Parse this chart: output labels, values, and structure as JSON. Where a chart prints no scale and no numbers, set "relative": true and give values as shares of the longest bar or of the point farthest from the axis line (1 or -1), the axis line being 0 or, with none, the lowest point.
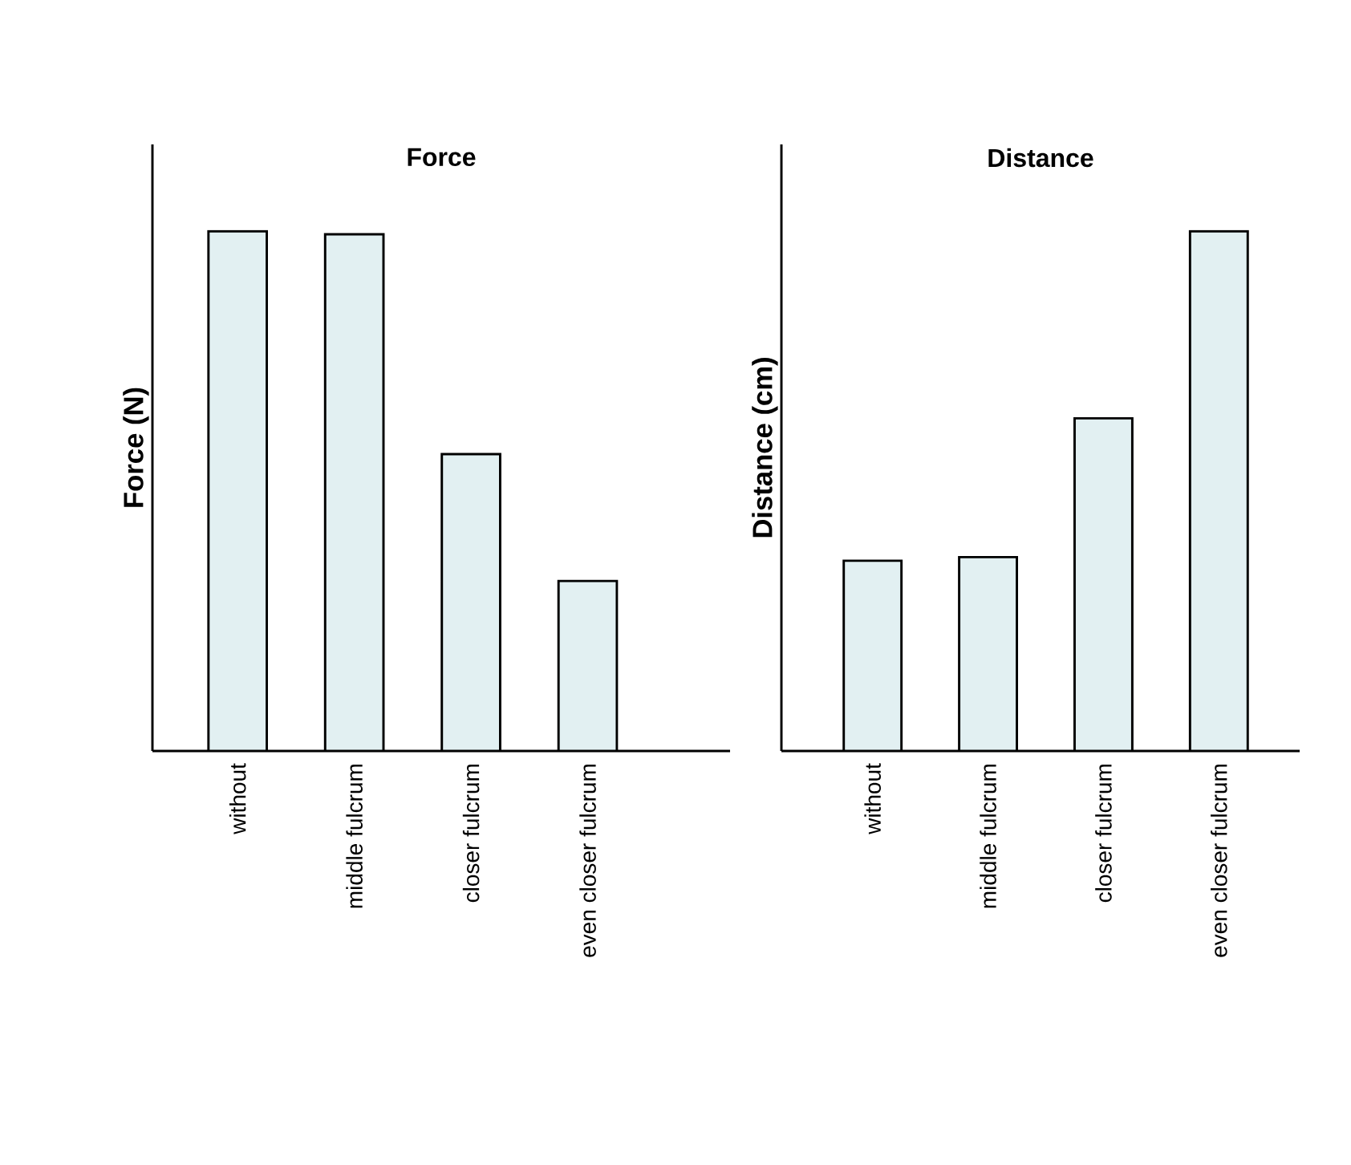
{
  "chart_data": [
    {
      "type": "bar",
      "title": "Force",
      "ylabel": "Force (N)",
      "categories": [
        "without",
        "middle fulcrum",
        "closer fulcrum",
        "even closer fulcrum"
      ],
      "values": [
        1,
        0.994,
        0.571,
        0.327
      ],
      "color": "#e2f0f2",
      "relative": true
    },
    {
      "type": "bar",
      "title": "Distance",
      "ylabel": "Distance (cm)",
      "categories": [
        "without",
        "middle fulcrum",
        "closer fulcrum",
        "even closer fulcrum"
      ],
      "values": [
        0.366,
        0.373,
        0.64,
        1
      ],
      "color": "#e2f0f2",
      "relative": true
    }
  ]
}
